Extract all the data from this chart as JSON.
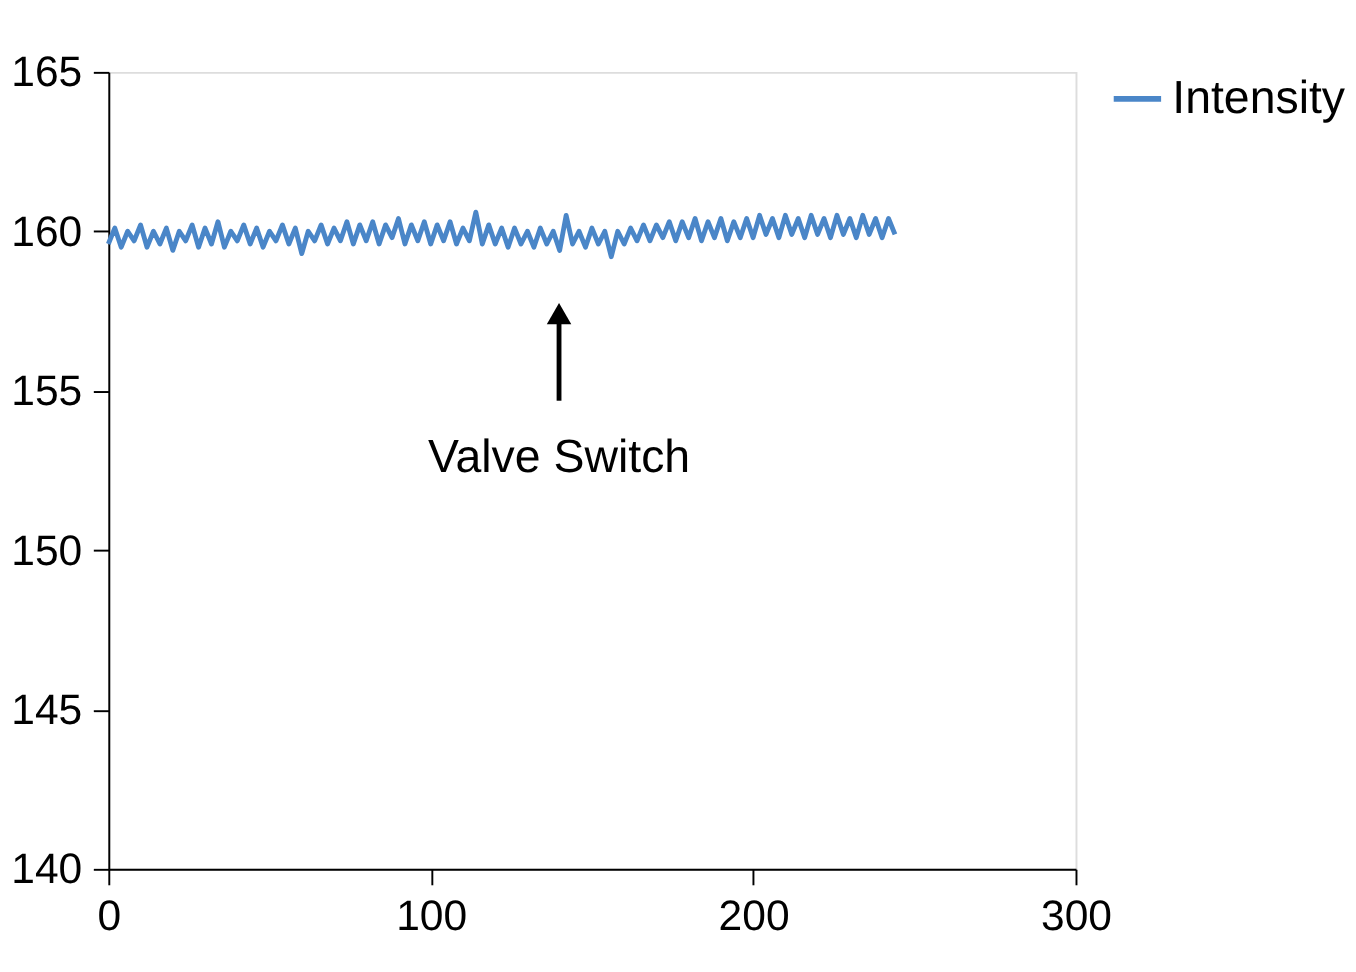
{
  "chart_data": {
    "type": "line",
    "x": [
      0,
      2,
      4,
      6,
      8,
      10,
      12,
      14,
      16,
      18,
      20,
      22,
      24,
      26,
      28,
      30,
      32,
      34,
      36,
      38,
      40,
      42,
      44,
      46,
      48,
      50,
      52,
      54,
      56,
      58,
      60,
      62,
      64,
      66,
      68,
      70,
      72,
      74,
      76,
      78,
      80,
      82,
      84,
      86,
      88,
      90,
      92,
      94,
      96,
      98,
      100,
      102,
      104,
      106,
      108,
      110,
      112,
      114,
      116,
      118,
      120,
      122,
      124,
      126,
      128,
      130,
      132,
      134,
      136,
      138,
      140,
      142,
      144,
      146,
      148,
      150,
      152,
      154,
      156,
      158,
      160,
      162,
      164,
      166,
      168,
      170,
      172,
      174,
      176,
      178,
      180,
      182,
      184,
      186,
      188,
      190,
      192,
      194,
      196,
      198,
      200,
      202,
      204,
      206,
      208,
      210,
      212,
      214,
      216,
      218,
      220,
      222,
      224,
      226,
      228,
      230,
      232,
      234,
      236,
      238,
      240,
      242,
      244
    ],
    "series": [
      {
        "name": "Intensity",
        "color": "#4a86c8",
        "values": [
          159.6,
          160.1,
          159.5,
          160.0,
          159.7,
          160.2,
          159.5,
          160.0,
          159.6,
          160.1,
          159.4,
          160.0,
          159.7,
          160.2,
          159.5,
          160.1,
          159.6,
          160.3,
          159.5,
          160.0,
          159.7,
          160.2,
          159.6,
          160.1,
          159.5,
          160.0,
          159.7,
          160.2,
          159.6,
          160.1,
          159.3,
          160.0,
          159.7,
          160.2,
          159.6,
          160.1,
          159.7,
          160.3,
          159.6,
          160.2,
          159.7,
          160.3,
          159.6,
          160.2,
          159.8,
          160.4,
          159.6,
          160.2,
          159.7,
          160.3,
          159.6,
          160.2,
          159.7,
          160.3,
          159.6,
          160.1,
          159.7,
          160.6,
          159.6,
          160.2,
          159.6,
          160.1,
          159.5,
          160.1,
          159.6,
          160.0,
          159.5,
          160.1,
          159.6,
          160.0,
          159.4,
          160.5,
          159.6,
          160.0,
          159.5,
          160.1,
          159.6,
          160.0,
          159.2,
          160.0,
          159.6,
          160.1,
          159.7,
          160.2,
          159.7,
          160.2,
          159.8,
          160.3,
          159.7,
          160.3,
          159.8,
          160.4,
          159.7,
          160.3,
          159.8,
          160.4,
          159.7,
          160.3,
          159.8,
          160.4,
          159.8,
          160.5,
          159.9,
          160.4,
          159.8,
          160.5,
          159.9,
          160.4,
          159.8,
          160.5,
          159.9,
          160.4,
          159.8,
          160.5,
          159.9,
          160.4,
          159.8,
          160.5,
          159.9,
          160.4,
          159.8,
          160.4,
          159.9
        ]
      }
    ],
    "xlim": [
      0,
      300
    ],
    "xticks": [
      0,
      100,
      200,
      300
    ],
    "ylim": [
      140,
      165
    ],
    "yticks": [
      140,
      145,
      150,
      155,
      160,
      165
    ],
    "annotations": [
      "Valve Switch"
    ],
    "legend": "right",
    "grid": false,
    "marker": "none",
    "line_style": "solid"
  }
}
